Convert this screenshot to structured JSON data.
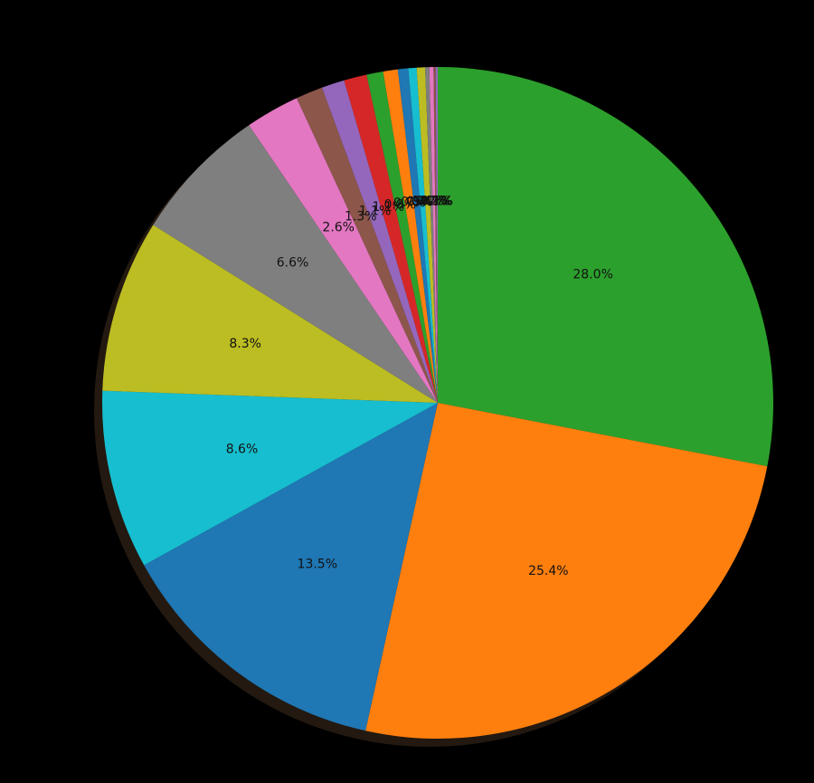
{
  "chart_data": {
    "type": "pie",
    "values": [
      28.0,
      25.4,
      13.5,
      8.6,
      8.3,
      6.6,
      2.6,
      1.3,
      1.1,
      1.1,
      0.8,
      0.7,
      0.5,
      0.4,
      0.4,
      0.2,
      0.2,
      0.1,
      0.1
    ],
    "value_labels": [
      "28.0%",
      "25.4%",
      "13.5%",
      "8.6%",
      "8.3%",
      "6.6%",
      "2.6%",
      "1.3%",
      "1.1%",
      "1.1%",
      "0.8%",
      "0.7%",
      "0.5%",
      "0.4%",
      "0.4%",
      "0.2%",
      "0.2%",
      "0.1%",
      "0.1%"
    ],
    "colors": [
      "#2ca02c",
      "#ff7f0e",
      "#1f77b4",
      "#17becf",
      "#bcbd22",
      "#7f7f7f",
      "#e377c2",
      "#8c564b",
      "#9467bd",
      "#d62728",
      "#2ca02c",
      "#ff7f0e",
      "#1f77b4",
      "#17becf",
      "#bcbd22",
      "#7f7f7f",
      "#e377c2",
      "#8c564b",
      "#9467bd"
    ],
    "start_angle": 90,
    "counterclock": false,
    "shadow": true
  }
}
